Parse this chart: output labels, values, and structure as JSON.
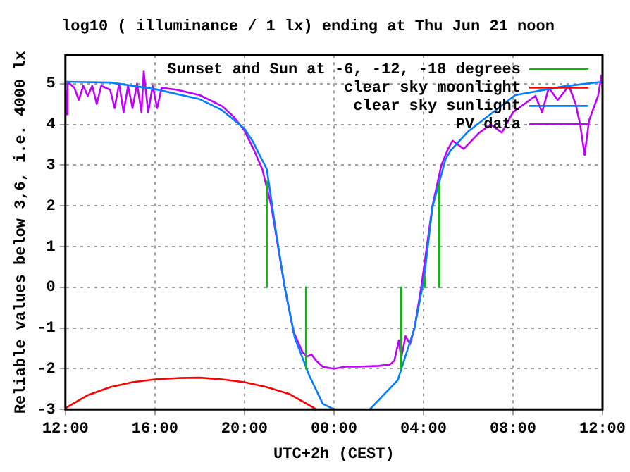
{
  "chart_data": {
    "type": "line",
    "title": "log10 ( illuminance / 1 lx) ending at Thu Jun 21 noon",
    "xlabel": "UTC+2h (CEST)",
    "ylabel": "Reliable values below 3,6, i.e. 4000 lx",
    "xlim": [
      "--06-20T12:00",
      "--06-21T12:00"
    ],
    "xticks": [
      {
        "value": "--06-20T12:00",
        "label": "12:00"
      },
      {
        "value": "--06-20T16:00",
        "label": "16:00"
      },
      {
        "value": "--06-20T20:00",
        "label": "20:00"
      },
      {
        "value": "--06-21T00:00",
        "label": "00:00"
      },
      {
        "value": "--06-21T04:00",
        "label": "04:00"
      },
      {
        "value": "--06-21T08:00",
        "label": "08:00"
      },
      {
        "value": "--06-21T12:00",
        "label": "12:00"
      }
    ],
    "ylim": [
      -3,
      5.7
    ],
    "yticks": [
      -3,
      -2,
      -1,
      0,
      1,
      2,
      3,
      4,
      5
    ],
    "grid": true,
    "legend": "top right",
    "marker": "none",
    "line_style": "solid",
    "series": [
      {
        "name": "Sunset and Sun at -6, -12, -18 degrees",
        "color": "#00c000",
        "x": [
          "--06-20T21:00",
          "--06-20T21:00",
          null,
          "--06-20T22:45",
          "--06-20T22:45",
          null,
          "--06-21T03:00",
          "--06-21T03:00",
          null,
          "--06-21T04:04",
          "--06-21T04:04",
          null,
          "--06-21T04:42",
          "--06-21T04:42"
        ],
        "values": [
          0,
          2.6,
          null,
          0,
          -2,
          null,
          0,
          -2,
          null,
          0,
          0.25,
          null,
          0,
          2.55
        ]
      },
      {
        "name": "clear sky moonlight",
        "color": "#ff0000",
        "x": [
          "--06-20T12:00",
          "--06-20T13:00",
          "--06-20T14:00",
          "--06-20T15:00",
          "--06-20T16:00",
          "--06-20T17:00",
          "--06-20T18:00",
          "--06-20T19:00",
          "--06-20T20:00",
          "--06-20T21:00",
          "--06-20T22:00",
          "--06-20T23:00",
          "--06-20T23:12"
        ],
        "values": [
          -2.97,
          -2.65,
          -2.45,
          -2.33,
          -2.26,
          -2.23,
          -2.22,
          -2.26,
          -2.33,
          -2.45,
          -2.62,
          -2.93,
          -3
        ]
      },
      {
        "name": "clear sky sunlight",
        "color": "#0080ff",
        "x": [
          "--06-20T12:00",
          "--06-20T14:00",
          "--06-20T16:00",
          "--06-20T18:00",
          "--06-20T19:00",
          "--06-20T20:00",
          "--06-20T20:22",
          "--06-20T21:00",
          "--06-20T21:26",
          "--06-20T21:48",
          "--06-20T22:15",
          "--06-20T22:54",
          "--06-20T23:30",
          "--06-21T00:00",
          null,
          "--06-21T01:36",
          "--06-21T02:51",
          "--06-21T03:36",
          "--06-21T04:02",
          "--06-21T04:24",
          "--06-21T04:59",
          "--06-21T05:12",
          "--06-21T06:00",
          "--06-21T08:06",
          "--06-21T10:12",
          "--06-21T12:00"
        ],
        "values": [
          5.05,
          5.03,
          4.87,
          4.62,
          4.35,
          3.9,
          3.59,
          2.9,
          1.28,
          0,
          -1.24,
          -2.17,
          -2.86,
          -3,
          null,
          -3,
          -2.28,
          -1.0,
          0.24,
          1.97,
          3.14,
          3.35,
          3.83,
          4.72,
          4.93,
          5.05
        ]
      },
      {
        "name": "PV data",
        "color": "#c000ff",
        "x": [
          "--06-20T12:00",
          "--06-20T12:03",
          "--06-20T12:06",
          "--06-20T12:24",
          "--06-20T12:36",
          "--06-20T12:48",
          "--06-20T13:00",
          "--06-20T13:12",
          "--06-20T13:24",
          "--06-20T13:36",
          "--06-20T14:00",
          "--06-20T14:12",
          "--06-20T14:24",
          "--06-20T14:36",
          "--06-20T14:48",
          "--06-20T15:00",
          "--06-20T15:12",
          "--06-20T15:24",
          "--06-20T15:30",
          "--06-20T15:42",
          "--06-20T15:54",
          "--06-20T16:06",
          "--06-20T16:18",
          "--06-20T17:00",
          "--06-20T18:00",
          "--06-20T19:00",
          "--06-20T19:30",
          "--06-20T20:00",
          "--06-20T20:24",
          "--06-20T20:48",
          "--06-20T21:12",
          "--06-20T21:30",
          "--06-20T21:48",
          "--06-20T22:12",
          "--06-20T22:36",
          "--06-20T22:48",
          "--06-20T23:00",
          "--06-20T23:12",
          "--06-20T23:30",
          "--06-21T00:00",
          "--06-21T00:30",
          "--06-21T01:00",
          "--06-21T02:00",
          "--06-21T02:30",
          "--06-21T02:42",
          "--06-21T02:54",
          "--06-21T03:00",
          "--06-21T03:12",
          "--06-21T03:24",
          "--06-21T03:36",
          "--06-21T03:54",
          "--06-21T04:06",
          "--06-21T04:24",
          "--06-21T04:48",
          "--06-21T05:06",
          "--06-21T05:18",
          "--06-21T05:48",
          "--06-21T06:30",
          "--06-21T07:00",
          "--06-21T07:30",
          "--06-21T08:00",
          "--06-21T08:30",
          "--06-21T09:00",
          "--06-21T09:18",
          "--06-21T09:36",
          "--06-21T10:00",
          "--06-21T10:30",
          "--06-21T10:48",
          "--06-21T11:00",
          "--06-21T11:12",
          "--06-21T11:24",
          "--06-21T11:36",
          "--06-21T11:48",
          "--06-21T11:57",
          "--06-21T12:00"
        ],
        "values": [
          5,
          4.25,
          5.05,
          4.9,
          4.6,
          4.95,
          4.7,
          4.95,
          4.5,
          4.95,
          4.85,
          4.4,
          5,
          4.3,
          4.95,
          4.4,
          5,
          4.3,
          5.3,
          4.3,
          4.95,
          4.4,
          4.9,
          4.85,
          4.72,
          4.45,
          4.2,
          3.85,
          3.4,
          2.9,
          2,
          1,
          0,
          -1.1,
          -1.6,
          -1.7,
          -1.65,
          -1.8,
          -1.95,
          -2,
          -1.95,
          -1.95,
          -1.93,
          -1.9,
          -1.8,
          -1.3,
          -1.75,
          -1.2,
          -1.4,
          -1,
          0,
          0.8,
          2,
          3,
          3.4,
          3.6,
          3.4,
          3.8,
          4,
          3.8,
          4.3,
          4.5,
          4.7,
          4.3,
          4.9,
          4.6,
          4.95,
          4.5,
          4,
          3.25,
          4.1,
          4.4,
          4.7,
          5.2,
          4.9
        ]
      }
    ]
  }
}
